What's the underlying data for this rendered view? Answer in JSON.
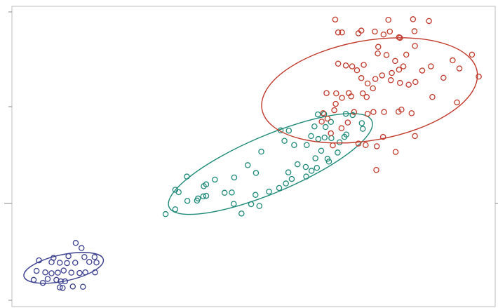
{
  "chart_data": {
    "type": "scatter",
    "title": "",
    "xlabel": "",
    "ylabel": "",
    "xlim": [
      0,
      100
    ],
    "ylim": [
      0,
      100
    ],
    "grid": false,
    "legend": "none",
    "series": [
      {
        "color": "#3b3f8f",
        "points": [
          [
            13.2,
            21.2
          ],
          [
            14.4,
            19.5
          ],
          [
            8.6,
            16.2
          ],
          [
            11.7,
            16.8
          ],
          [
            15.0,
            16.5
          ],
          [
            17.1,
            16.5
          ],
          [
            5.6,
            15.4
          ],
          [
            8.2,
            14.8
          ],
          [
            9.9,
            14.6
          ],
          [
            11.4,
            14.5
          ],
          [
            13.1,
            14.6
          ],
          [
            16.0,
            14.9
          ],
          [
            17.5,
            14.7
          ],
          [
            5.1,
            11.9
          ],
          [
            6.9,
            11.4
          ],
          [
            8.2,
            11.1
          ],
          [
            9.5,
            11.3
          ],
          [
            10.7,
            12.0
          ],
          [
            12.3,
            11.3
          ],
          [
            14.0,
            11.2
          ],
          [
            15.2,
            11.4
          ],
          [
            17.2,
            11.4
          ],
          [
            4.5,
            8.9
          ],
          [
            6.4,
            7.9
          ],
          [
            9.2,
            8.9
          ],
          [
            10.1,
            8.4
          ],
          [
            11.0,
            8.4
          ],
          [
            9.9,
            6.4
          ],
          [
            12.6,
            6.7
          ],
          [
            14.7,
            6.6
          ],
          [
            10.5,
            6.2
          ],
          [
            7.4,
            9.2
          ]
        ],
        "ellipse": {
          "cx": 10.7,
          "cy": 12.9,
          "rx": 8.4,
          "ry": 4.4,
          "angle_deg": -12
        }
      },
      {
        "color": "#1f8a78",
        "points": [
          [
            39.7,
            40.1
          ],
          [
            36.3,
            35.2
          ],
          [
            33.8,
            32.4
          ],
          [
            31.8,
            30.8
          ],
          [
            34.5,
            38.1
          ],
          [
            36.2,
            43.3
          ],
          [
            38.5,
            36.0
          ],
          [
            40.2,
            36.9
          ],
          [
            42.0,
            42.3
          ],
          [
            44.0,
            37.9
          ],
          [
            46.0,
            43.0
          ],
          [
            45.5,
            38.0
          ],
          [
            47.5,
            31.0
          ],
          [
            49.5,
            34.1
          ],
          [
            51.2,
            33.5
          ],
          [
            50.4,
            37.2
          ],
          [
            53.2,
            38.3
          ],
          [
            55.3,
            39.5
          ],
          [
            56.7,
            41.0
          ],
          [
            57.9,
            42.5
          ],
          [
            60.9,
            43.3
          ],
          [
            62.0,
            45.2
          ],
          [
            63.1,
            46.2
          ],
          [
            57.2,
            44.7
          ],
          [
            59.1,
            47.4
          ],
          [
            60.8,
            46.5
          ],
          [
            62.8,
            49.4
          ],
          [
            65.3,
            49.2
          ],
          [
            65.6,
            48.3
          ],
          [
            67.4,
            51.3
          ],
          [
            64.0,
            51.9
          ],
          [
            67.8,
            54.7
          ],
          [
            61.9,
            56.8
          ],
          [
            58.4,
            53.8
          ],
          [
            61.0,
            53.8
          ],
          [
            51.6,
            51.6
          ],
          [
            56.4,
            55.2
          ],
          [
            57.3,
            58.6
          ],
          [
            62.6,
            60.0
          ],
          [
            64.9,
            59.8
          ],
          [
            66.0,
            61.5
          ],
          [
            70.5,
            63.8
          ],
          [
            72.4,
            61.1
          ],
          [
            72.6,
            59.2
          ],
          [
            69.2,
            57.3
          ],
          [
            68.8,
            56.5
          ],
          [
            66.1,
            56.1
          ],
          [
            64.7,
            56.3
          ],
          [
            63.4,
            55.8
          ],
          [
            69.1,
            64.2
          ],
          [
            63.3,
            64.0
          ],
          [
            64.6,
            64.1
          ],
          [
            55.6,
            58.7
          ],
          [
            50.5,
            44.5
          ],
          [
            48.8,
            47.1
          ],
          [
            39.6,
            36.7
          ],
          [
            38.3,
            35.3
          ],
          [
            33.8,
            38.9
          ],
          [
            45.9,
            34.2
          ],
          [
            40.2,
            40.7
          ]
        ],
        "ellipse": {
          "cx": 53.5,
          "cy": 47.5,
          "rx": 22.8,
          "ry": 9.5,
          "angle_deg": -23
        }
      },
      {
        "color": "#c0392b",
        "points": [
          [
            64.4,
            64.4
          ],
          [
            65.3,
            62.6
          ],
          [
            66.7,
            65.4
          ],
          [
            64.1,
            61.6
          ],
          [
            66.0,
            57.7
          ],
          [
            68.2,
            59.4
          ],
          [
            69.5,
            61.3
          ],
          [
            67.0,
            67.5
          ],
          [
            68.3,
            69.5
          ],
          [
            70.2,
            70.0
          ],
          [
            65.1,
            71.1
          ],
          [
            67.1,
            71.0
          ],
          [
            69.7,
            71.1
          ],
          [
            72.6,
            71.0
          ],
          [
            73.6,
            74.3
          ],
          [
            75.2,
            75.8
          ],
          [
            76.6,
            77.0
          ],
          [
            78.4,
            75.4
          ],
          [
            80.3,
            74.5
          ],
          [
            82.1,
            73.9
          ],
          [
            83.5,
            74.8
          ],
          [
            84.9,
            78.6
          ],
          [
            86.7,
            80.0
          ],
          [
            89.3,
            76.2
          ],
          [
            91.2,
            82.0
          ],
          [
            92.6,
            79.3
          ],
          [
            95.2,
            83.9
          ],
          [
            96.6,
            76.6
          ],
          [
            92.1,
            68.0
          ],
          [
            87.0,
            69.8
          ],
          [
            82.7,
            64.4
          ],
          [
            80.0,
            64.9
          ],
          [
            77.0,
            64.8
          ],
          [
            74.8,
            64.8
          ],
          [
            73.6,
            64.2
          ],
          [
            73.4,
            69.8
          ],
          [
            74.7,
            72.7
          ],
          [
            72.3,
            76.1
          ],
          [
            71.4,
            78.7
          ],
          [
            69.1,
            80.3
          ],
          [
            67.5,
            80.9
          ],
          [
            70.4,
            80.0
          ],
          [
            72.8,
            80.5
          ],
          [
            75.7,
            84.3
          ],
          [
            77.5,
            83.8
          ],
          [
            75.8,
            86.5
          ],
          [
            79.3,
            81.8
          ],
          [
            78.6,
            77.8
          ],
          [
            80.1,
            78.9
          ],
          [
            81.0,
            80.0
          ],
          [
            81.6,
            83.9
          ],
          [
            83.4,
            86.8
          ],
          [
            80.3,
            89.5
          ],
          [
            83.3,
            91.7
          ],
          [
            80.1,
            89.7
          ],
          [
            78.2,
            91.6
          ],
          [
            76.9,
            90.6
          ],
          [
            75.1,
            91.6
          ],
          [
            71.7,
            91.0
          ],
          [
            72.3,
            91.9
          ],
          [
            67.5,
            91.3
          ],
          [
            68.3,
            91.3
          ],
          [
            77.9,
            95.5
          ],
          [
            83.0,
            95.7
          ],
          [
            86.3,
            95.1
          ],
          [
            66.9,
            95.6
          ],
          [
            76.8,
            56.5
          ],
          [
            75.5,
            53.4
          ],
          [
            71.7,
            54.3
          ],
          [
            79.4,
            51.5
          ],
          [
            83.4,
            56.8
          ],
          [
            73.2,
            53.8
          ],
          [
            66.4,
            53.7
          ],
          [
            75.4,
            45.5
          ],
          [
            80.6,
            65.6
          ],
          [
            70.8,
            64.8
          ]
        ],
        "ellipse": {
          "cx": 74.0,
          "cy": 72.0,
          "rx": 22.6,
          "ry": 16.6,
          "angle_deg": -10
        }
      }
    ]
  }
}
